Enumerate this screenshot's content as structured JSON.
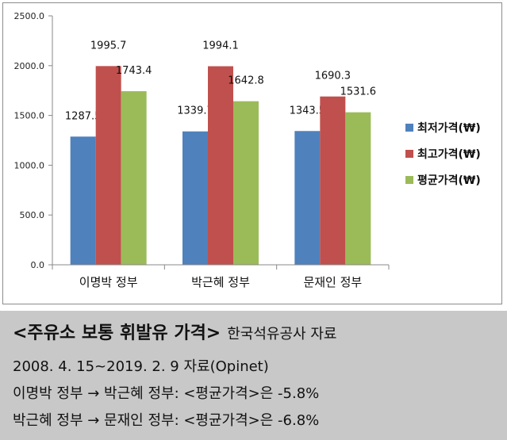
{
  "chart_data": {
    "type": "bar",
    "categories": [
      "이명박 정부",
      "박근혜 정부",
      "문재인 정부"
    ],
    "series": [
      {
        "name": "최저가격(₩)",
        "color": "#4f81bd",
        "values": [
          1287.5,
          1339.7,
          1343.5
        ],
        "labels": [
          "1287.5",
          "1339.7",
          "1343.5"
        ]
      },
      {
        "name": "최고가격(₩)",
        "color": "#c0504d",
        "values": [
          1995.7,
          1994.1,
          1690.3
        ],
        "labels": [
          "1995.7",
          "1994.1",
          "1690.3"
        ]
      },
      {
        "name": "평균가격(₩)",
        "color": "#9bbb59",
        "values": [
          1743.4,
          1642.8,
          1531.6
        ],
        "labels": [
          "1743.4",
          "1642.8",
          "1531.6"
        ]
      }
    ],
    "yticks": [
      "0.0",
      "500.0",
      "1000.0",
      "1500.0",
      "2000.0",
      "2500.0"
    ],
    "ylim": [
      0,
      2500
    ],
    "grid": false,
    "legend_position": "right"
  },
  "caption": {
    "title": "<주유소 보통 휘발유 가격>",
    "source": "한국석유공사 자료",
    "period": "2008. 4. 15~2019. 2. 9 자료(Opinet)",
    "change1": "이명박 정부 → 박근혜 정부: <평균가격>은  -5.8%",
    "change2": "박근혜 정부 → 문재인 정부: <평균가격>은  -6.8%"
  }
}
